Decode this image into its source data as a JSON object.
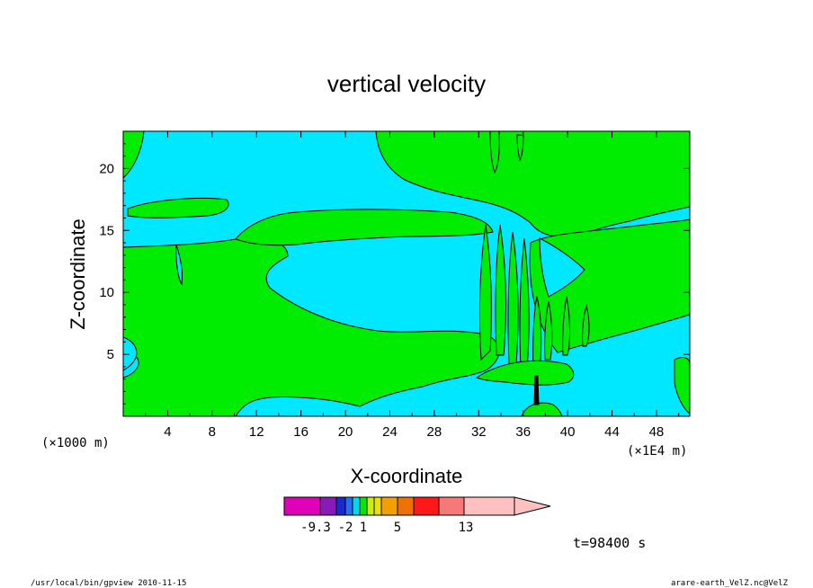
{
  "chart_data": {
    "type": "heatmap",
    "title": "vertical velocity",
    "xlabel": "X-coordinate",
    "ylabel": "Z-coordinate",
    "x_units_left": "(×1000 m)",
    "x_units_right": "(×1E4 m)",
    "xlim": [
      0,
      51
    ],
    "ylim": [
      0,
      23
    ],
    "xticks": [
      "4",
      "8",
      "12",
      "16",
      "20",
      "24",
      "28",
      "32",
      "36",
      "40",
      "44",
      "48"
    ],
    "yticks": [
      "5",
      "10",
      "15",
      "20"
    ],
    "colorbar": {
      "colors": [
        "#e000b8",
        "#8a1ab8",
        "#1a2ad0",
        "#2a6ef0",
        "#00d8f0",
        "#00e800",
        "#c8f000",
        "#f0e000",
        "#f0a000",
        "#f07000",
        "#ff1818",
        "#f87878",
        "#ffc0c0"
      ],
      "labels": [
        "-9.3",
        "-2",
        "1",
        "5",
        "13"
      ]
    },
    "fill_colors": {
      "negative": "#00e8ff",
      "positive": "#00ec00",
      "strong": "#000000"
    },
    "time_label": "t=98400  s"
  },
  "footer": {
    "left": "/usr/local/bin/gpview   2010-11-15",
    "right": "arare-earth_VelZ.nc@VelZ"
  }
}
